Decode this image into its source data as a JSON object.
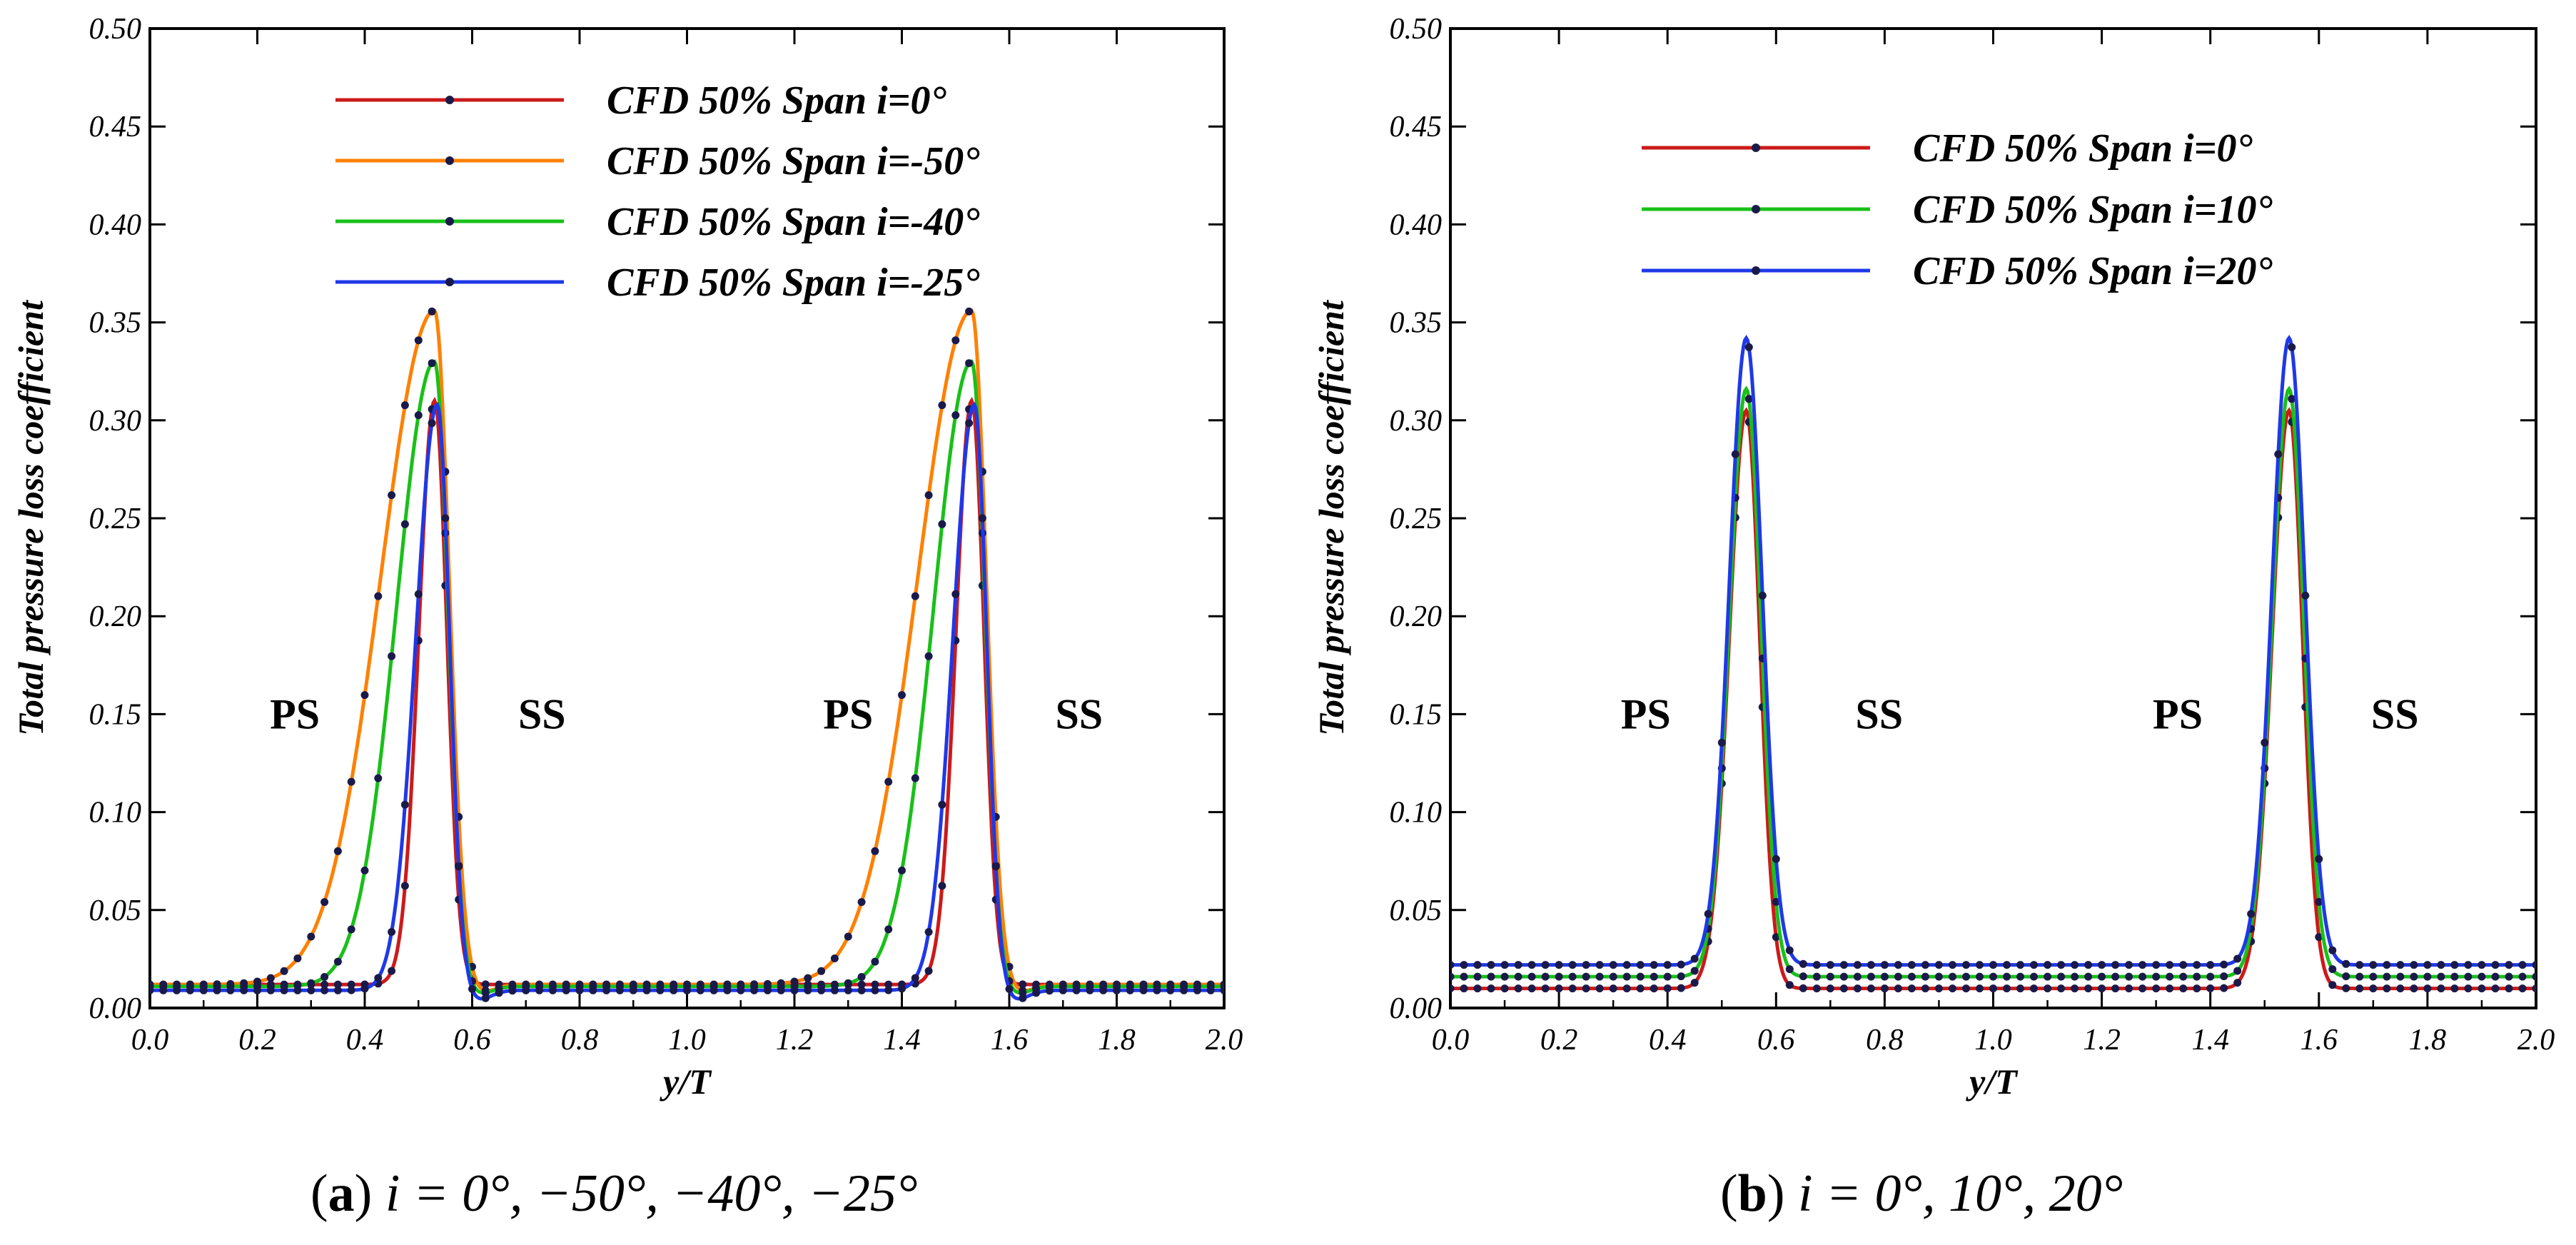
{
  "chart_data": [
    {
      "id": "a",
      "type": "line",
      "xlabel": "y/T",
      "ylabel": "Total pressure loss coefficient",
      "xlim": [
        0.0,
        2.0
      ],
      "ylim": [
        0.0,
        0.5
      ],
      "xticks": [
        "0.0",
        "0.2",
        "0.4",
        "0.6",
        "0.8",
        "1.0",
        "1.2",
        "1.4",
        "1.6",
        "1.8",
        "2.0"
      ],
      "yticks": [
        "0.00",
        "0.05",
        "0.10",
        "0.15",
        "0.20",
        "0.25",
        "0.30",
        "0.35",
        "0.40",
        "0.45",
        "0.50"
      ],
      "legend_position": "top-center",
      "annotations": [
        {
          "text": "PS",
          "x": 0.27,
          "y": 0.15
        },
        {
          "text": "SS",
          "x": 0.73,
          "y": 0.15
        },
        {
          "text": "PS",
          "x": 1.3,
          "y": 0.15
        },
        {
          "text": "SS",
          "x": 1.73,
          "y": 0.15
        }
      ],
      "series": [
        {
          "name": "CFD 50% Span i=0°",
          "color": "#cc1a1a",
          "baseline": 0.012,
          "peaks": [
            0.53,
            1.53
          ],
          "peak": 0.31,
          "rise_width": 0.07,
          "fall_width": 0.055,
          "undershoot": 0.0
        },
        {
          "name": "CFD 50% Span i=-50°",
          "color": "#ff8000",
          "baseline": 0.012,
          "peaks": [
            0.53,
            1.53
          ],
          "peak": 0.356,
          "rise_width": 0.24,
          "fall_width": 0.065,
          "undershoot": 0.004
        },
        {
          "name": "CFD 50% Span i=-40°",
          "color": "#19c019",
          "baseline": 0.011,
          "peaks": [
            0.53,
            1.53
          ],
          "peak": 0.33,
          "rise_width": 0.17,
          "fall_width": 0.06,
          "undershoot": 0.004
        },
        {
          "name": "CFD 50% Span i=-25°",
          "color": "#1f38e8",
          "baseline": 0.009,
          "peaks": [
            0.535,
            1.535
          ],
          "peak": 0.308,
          "rise_width": 0.095,
          "fall_width": 0.055,
          "undershoot": 0.005
        }
      ]
    },
    {
      "id": "b",
      "type": "line",
      "xlabel": "y/T",
      "ylabel": "Total pressure loss coefficient",
      "xlim": [
        0.0,
        2.0
      ],
      "ylim": [
        0.0,
        0.5
      ],
      "xticks": [
        "0.0",
        "0.2",
        "0.4",
        "0.6",
        "0.8",
        "1.0",
        "1.2",
        "1.4",
        "1.6",
        "1.8",
        "2.0"
      ],
      "yticks": [
        "0.00",
        "0.05",
        "0.10",
        "0.15",
        "0.20",
        "0.25",
        "0.30",
        "0.35",
        "0.40",
        "0.45",
        "0.50"
      ],
      "legend_position": "top-center",
      "annotations": [
        {
          "text": "PS",
          "x": 0.36,
          "y": 0.15
        },
        {
          "text": "SS",
          "x": 0.79,
          "y": 0.15
        },
        {
          "text": "PS",
          "x": 1.34,
          "y": 0.15
        },
        {
          "text": "SS",
          "x": 1.74,
          "y": 0.15
        }
      ],
      "series": [
        {
          "name": "CFD 50% Span i=0°",
          "color": "#cc1a1a",
          "baseline": 0.01,
          "peaks": [
            0.545,
            1.545
          ],
          "peak": 0.305,
          "rise_width": 0.075,
          "fall_width": 0.06,
          "undershoot": 0.0
        },
        {
          "name": "CFD 50% Span i=10°",
          "color": "#19c019",
          "baseline": 0.016,
          "peaks": [
            0.545,
            1.545
          ],
          "peak": 0.316,
          "rise_width": 0.075,
          "fall_width": 0.065,
          "undershoot": 0.0
        },
        {
          "name": "CFD 50% Span i=20°",
          "color": "#1f38e8",
          "baseline": 0.022,
          "peaks": [
            0.545,
            1.545
          ],
          "peak": 0.342,
          "rise_width": 0.075,
          "fall_width": 0.07,
          "undershoot": 0.0
        }
      ]
    }
  ],
  "captions": [
    {
      "letter": "a",
      "text": "i = 0°, −50°, −40°, −25°"
    },
    {
      "letter": "b",
      "text": "i = 0°, 10°, 20°"
    }
  ]
}
